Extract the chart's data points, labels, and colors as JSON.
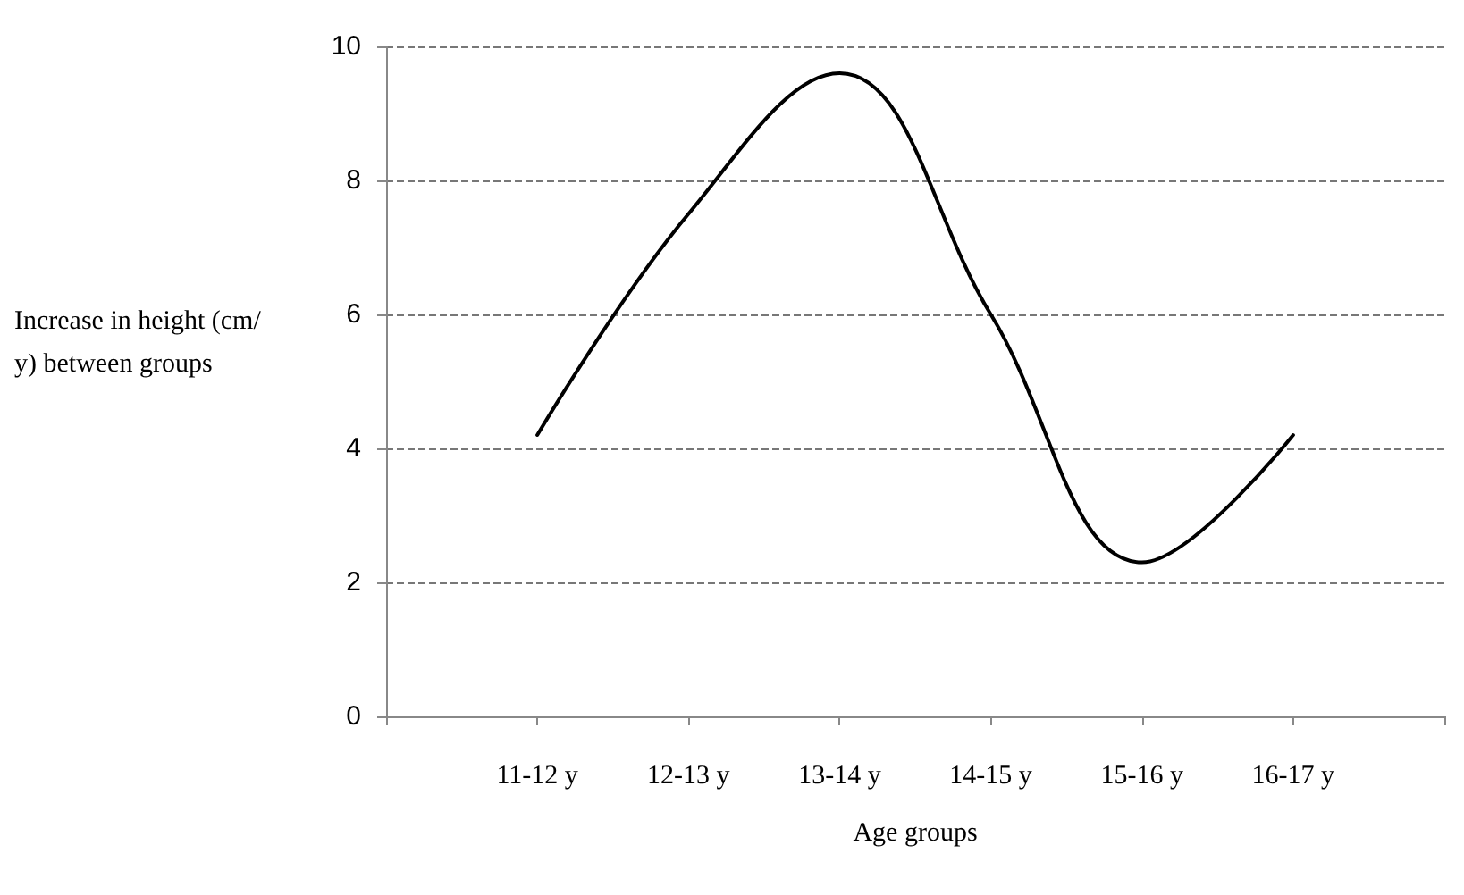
{
  "chart_data": {
    "type": "line",
    "xlabel": "Age groups",
    "ylabel": "Increase in height (cm/y) between groups",
    "categories": [
      "11-12 y",
      "12-13 y",
      "13-14 y",
      "14-15 y",
      "15-16 y",
      "16-17 y"
    ],
    "series": [
      {
        "color": "#000000",
        "values": [
          4.2,
          7.5,
          9.6,
          6.0,
          2.3,
          4.2
        ]
      }
    ],
    "ylim": [
      0,
      10
    ],
    "yticks": [
      0,
      2,
      4,
      6,
      8,
      10
    ],
    "grid": "y",
    "marker": "none",
    "line_style": "solid"
  }
}
